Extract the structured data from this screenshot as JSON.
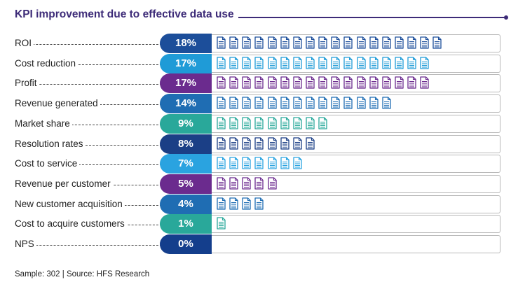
{
  "chart_data": {
    "type": "bar",
    "title": "KPI improvement due to effective data use",
    "categories": [
      "ROI",
      "Cost reduction",
      "Profit",
      "Revenue generated",
      "Market share",
      "Resolution rates",
      "Cost to service",
      "Revenue per customer",
      "New customer acquisition",
      "Cost to acquire customers",
      "NPS"
    ],
    "values": [
      18,
      17,
      17,
      14,
      9,
      8,
      7,
      5,
      4,
      1,
      0
    ],
    "value_labels": [
      "18%",
      "17%",
      "17%",
      "14%",
      "9%",
      "8%",
      "7%",
      "5%",
      "4%",
      "1%",
      "0%"
    ],
    "colors": [
      "#1c4e9a",
      "#1f9bd7",
      "#6b2b8e",
      "#1f6db3",
      "#29a89a",
      "#1b3f86",
      "#2aa3e0",
      "#6b2b8e",
      "#1f6db3",
      "#29a89a",
      "#143e8c"
    ],
    "unit": "one document icon per percentage point"
  },
  "footer": "Sample: 302 | Source: HFS Research",
  "icon_name": "document-icon"
}
